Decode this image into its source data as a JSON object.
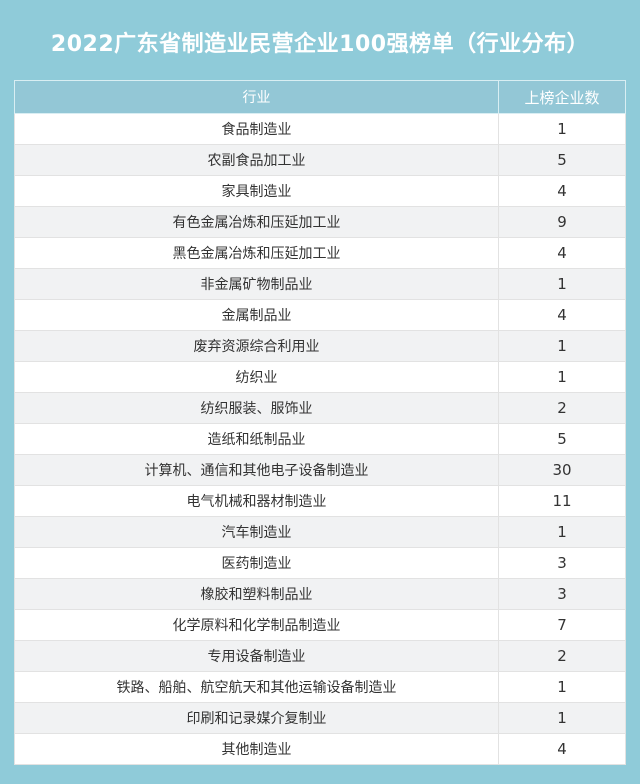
{
  "header": {
    "title": "2022广东省制造业民营企业100强榜单（行业分布）"
  },
  "table": {
    "columns": [
      "行业",
      "上榜企业数"
    ],
    "rows": [
      [
        "食品制造业",
        1
      ],
      [
        "农副食品加工业",
        5
      ],
      [
        "家具制造业",
        4
      ],
      [
        "有色金属冶炼和压延加工业",
        9
      ],
      [
        "黑色金属冶炼和压延加工业",
        4
      ],
      [
        "非金属矿物制品业",
        1
      ],
      [
        "金属制品业",
        4
      ],
      [
        "废弃资源综合利用业",
        1
      ],
      [
        "纺织业",
        1
      ],
      [
        "纺织服装、服饰业",
        2
      ],
      [
        "造纸和纸制品业",
        5
      ],
      [
        "计算机、通信和其他电子设备制造业",
        30
      ],
      [
        "电气机械和器材制造业",
        11
      ],
      [
        "汽车制造业",
        1
      ],
      [
        "医药制造业",
        3
      ],
      [
        "橡胶和塑料制品业",
        3
      ],
      [
        "化学原料和化学制品制造业",
        7
      ],
      [
        "专用设备制造业",
        2
      ],
      [
        "铁路、船舶、航空航天和其他运输设备制造业",
        1
      ],
      [
        "印刷和记录媒介复制业",
        1
      ],
      [
        "其他制造业",
        4
      ]
    ]
  }
}
